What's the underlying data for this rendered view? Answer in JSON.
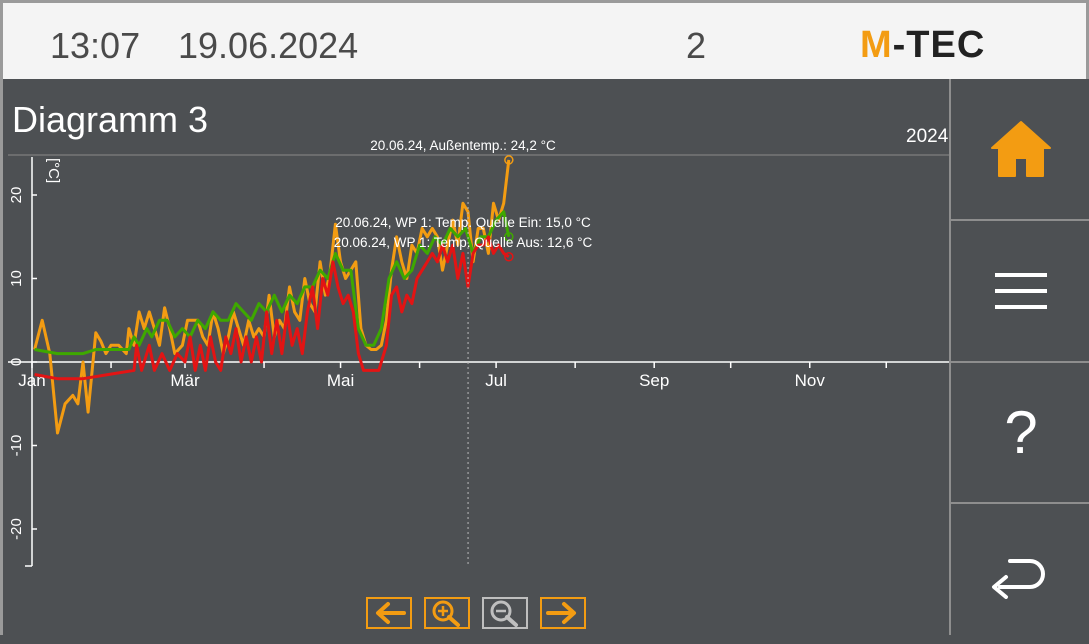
{
  "header": {
    "time": "13:07",
    "date": "19.06.2024",
    "page_number": "2",
    "logo_text": {
      "m": "M",
      "rest": "-TEC"
    }
  },
  "main": {
    "title": "Diagramm 3",
    "year": "2024"
  },
  "colors": {
    "accent": "#f39c12",
    "series_green": "#3ea800",
    "series_red": "#e31414",
    "background": "#4d5053"
  },
  "sidebar": {
    "items": [
      {
        "icon": "home-icon"
      },
      {
        "icon": "menu-icon"
      },
      {
        "icon": "help-icon",
        "label": "?"
      },
      {
        "icon": "back-icon"
      }
    ]
  },
  "nav": [
    {
      "icon": "arrow-left-icon"
    },
    {
      "icon": "zoom-in-icon"
    },
    {
      "icon": "zoom-out-icon",
      "disabled": true
    },
    {
      "icon": "arrow-right-icon"
    }
  ],
  "chart_data": {
    "type": "line",
    "ylabel": "[°C]",
    "ylim": [
      -25,
      25
    ],
    "yticks": [
      "20",
      "10",
      "0",
      "-10",
      "-20"
    ],
    "xticks": [
      "Jan",
      "Mär",
      "Mai",
      "Jul",
      "Sep",
      "Nov"
    ],
    "cursor_day": 171,
    "annotations": [
      "20.06.24, Außentemp.: 24,2 °C",
      "20.06.24, WP 1: Temp. Quelle Ein: 15,0 °C",
      "20.06.24, WP 1: Temp. Quelle Aus: 12,6 °C"
    ],
    "series": [
      {
        "values": [
          [
            1,
            1.5
          ],
          [
            4,
            5
          ],
          [
            7,
            1
          ],
          [
            10,
            -8.5
          ],
          [
            13,
            -5
          ],
          [
            16,
            -4
          ],
          [
            18,
            -5
          ],
          [
            20,
            0
          ],
          [
            22,
            -6
          ],
          [
            25,
            3.5
          ],
          [
            27,
            2.5
          ],
          [
            29,
            1
          ],
          [
            31,
            2
          ],
          [
            34,
            2
          ],
          [
            37,
            1
          ],
          [
            38,
            4
          ],
          [
            40,
            2
          ],
          [
            42,
            6
          ],
          [
            44,
            4
          ],
          [
            46,
            6
          ],
          [
            48,
            4
          ],
          [
            50,
            2
          ],
          [
            52,
            6.5
          ],
          [
            54,
            4
          ],
          [
            56,
            1
          ],
          [
            59,
            2
          ],
          [
            61,
            5
          ],
          [
            63,
            5
          ],
          [
            65,
            5
          ],
          [
            67,
            3
          ],
          [
            69,
            2
          ],
          [
            71,
            6
          ],
          [
            73,
            4
          ],
          [
            75,
            1
          ],
          [
            77,
            3
          ],
          [
            79,
            6
          ],
          [
            81,
            4
          ],
          [
            83,
            2
          ],
          [
            85,
            5
          ],
          [
            87,
            3
          ],
          [
            89,
            4
          ],
          [
            91,
            3
          ],
          [
            93,
            8
          ],
          [
            95,
            3
          ],
          [
            97,
            5
          ],
          [
            99,
            4
          ],
          [
            101,
            9
          ],
          [
            103,
            6
          ],
          [
            105,
            5
          ],
          [
            107,
            10
          ],
          [
            109,
            7
          ],
          [
            111,
            6
          ],
          [
            113,
            12
          ],
          [
            115,
            8
          ],
          [
            117,
            11
          ],
          [
            119,
            16.5
          ],
          [
            121,
            12
          ],
          [
            123,
            10
          ],
          [
            125,
            11
          ],
          [
            127,
            12
          ],
          [
            129,
            4
          ],
          [
            131,
            2
          ],
          [
            133,
            1.5
          ],
          [
            135,
            1.5
          ],
          [
            137,
            2
          ],
          [
            139,
            5
          ],
          [
            141,
            11
          ],
          [
            143,
            15
          ],
          [
            145,
            12
          ],
          [
            147,
            10
          ],
          [
            149,
            14
          ],
          [
            151,
            13
          ],
          [
            153,
            16
          ],
          [
            155,
            15
          ],
          [
            157,
            16
          ],
          [
            159,
            15
          ],
          [
            161,
            11
          ],
          [
            163,
            14
          ],
          [
            165,
            17
          ],
          [
            167,
            14
          ],
          [
            169,
            19
          ],
          [
            171,
            18
          ],
          [
            173,
            12
          ],
          [
            175,
            16
          ],
          [
            177,
            16
          ],
          [
            179,
            13
          ],
          [
            181,
            19
          ],
          [
            183,
            17
          ],
          [
            185,
            19
          ],
          [
            187,
            24.2
          ]
        ]
      },
      {
        "values": [
          [
            1,
            1.5
          ],
          [
            10,
            1
          ],
          [
            20,
            1
          ],
          [
            25,
            1.5
          ],
          [
            35,
            1.5
          ],
          [
            38,
            1.5
          ],
          [
            40,
            3
          ],
          [
            42,
            2
          ],
          [
            45,
            4
          ],
          [
            47,
            3
          ],
          [
            50,
            5
          ],
          [
            53,
            5
          ],
          [
            56,
            3
          ],
          [
            59,
            4
          ],
          [
            62,
            3
          ],
          [
            65,
            5
          ],
          [
            68,
            4
          ],
          [
            71,
            6
          ],
          [
            74,
            5
          ],
          [
            77,
            5
          ],
          [
            80,
            7
          ],
          [
            83,
            6
          ],
          [
            86,
            5
          ],
          [
            89,
            7
          ],
          [
            92,
            6
          ],
          [
            95,
            8
          ],
          [
            98,
            6
          ],
          [
            101,
            8
          ],
          [
            104,
            7
          ],
          [
            107,
            9
          ],
          [
            110,
            9
          ],
          [
            113,
            11
          ],
          [
            116,
            10
          ],
          [
            119,
            13
          ],
          [
            122,
            11
          ],
          [
            125,
            11
          ],
          [
            128,
            4
          ],
          [
            131,
            2
          ],
          [
            134,
            2
          ],
          [
            137,
            4
          ],
          [
            140,
            10
          ],
          [
            143,
            12
          ],
          [
            146,
            10
          ],
          [
            149,
            11
          ],
          [
            152,
            14
          ],
          [
            155,
            13
          ],
          [
            158,
            15
          ],
          [
            161,
            14
          ],
          [
            164,
            16
          ],
          [
            167,
            15
          ],
          [
            170,
            16
          ],
          [
            173,
            13
          ],
          [
            176,
            15
          ],
          [
            179,
            15
          ],
          [
            182,
            17
          ],
          [
            185,
            18
          ],
          [
            187,
            15
          ]
        ]
      },
      {
        "values": [
          [
            1,
            -1.5
          ],
          [
            10,
            -2
          ],
          [
            20,
            -2
          ],
          [
            30,
            -1.5
          ],
          [
            40,
            -1
          ],
          [
            41,
            2
          ],
          [
            43,
            -1
          ],
          [
            46,
            2
          ],
          [
            48,
            -1
          ],
          [
            51,
            1
          ],
          [
            54,
            -1
          ],
          [
            57,
            1
          ],
          [
            60,
            0
          ],
          [
            62,
            3
          ],
          [
            64,
            -1
          ],
          [
            66,
            2
          ],
          [
            68,
            -1
          ],
          [
            70,
            3
          ],
          [
            72,
            0
          ],
          [
            74,
            -1
          ],
          [
            76,
            3
          ],
          [
            78,
            1
          ],
          [
            80,
            4
          ],
          [
            82,
            0
          ],
          [
            84,
            3
          ],
          [
            86,
            0
          ],
          [
            88,
            3
          ],
          [
            90,
            0
          ],
          [
            92,
            6
          ],
          [
            94,
            1
          ],
          [
            96,
            5
          ],
          [
            98,
            1
          ],
          [
            100,
            6
          ],
          [
            102,
            2
          ],
          [
            104,
            4
          ],
          [
            106,
            1
          ],
          [
            108,
            6
          ],
          [
            110,
            9
          ],
          [
            112,
            4
          ],
          [
            114,
            10
          ],
          [
            116,
            8
          ],
          [
            118,
            12
          ],
          [
            120,
            9
          ],
          [
            122,
            7
          ],
          [
            124,
            8
          ],
          [
            126,
            6
          ],
          [
            128,
            1
          ],
          [
            130,
            -1
          ],
          [
            133,
            -1
          ],
          [
            136,
            -1
          ],
          [
            139,
            2
          ],
          [
            141,
            8
          ],
          [
            143,
            9
          ],
          [
            145,
            6
          ],
          [
            147,
            8
          ],
          [
            149,
            7
          ],
          [
            151,
            10
          ],
          [
            153,
            11
          ],
          [
            155,
            12
          ],
          [
            157,
            13
          ],
          [
            159,
            12
          ],
          [
            161,
            14
          ],
          [
            163,
            12
          ],
          [
            165,
            14
          ],
          [
            167,
            10
          ],
          [
            169,
            13
          ],
          [
            171,
            9
          ],
          [
            173,
            13
          ],
          [
            175,
            14
          ],
          [
            177,
            14
          ],
          [
            179,
            15
          ],
          [
            181,
            13
          ],
          [
            183,
            14
          ],
          [
            185,
            13
          ],
          [
            187,
            12.6
          ]
        ]
      }
    ]
  }
}
